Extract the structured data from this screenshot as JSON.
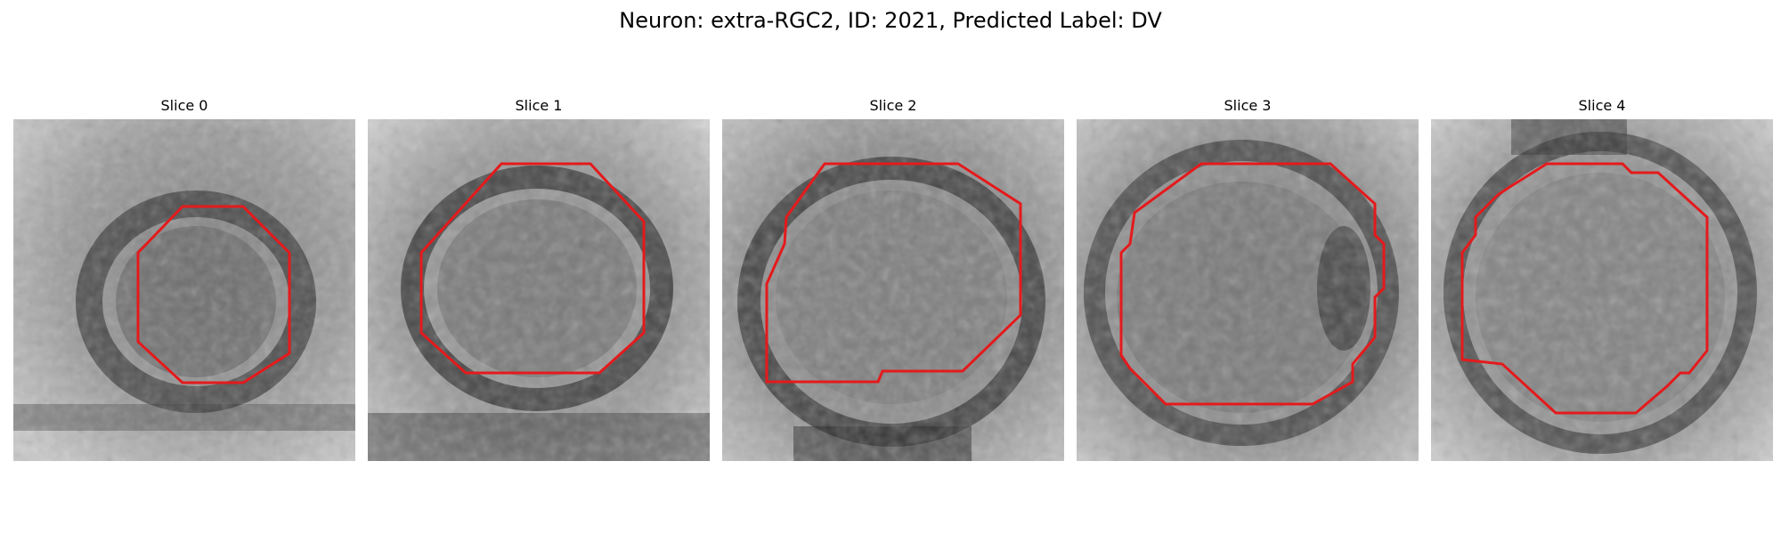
{
  "figure": {
    "title": "Neuron: extra-RGC2, ID: 2021, Predicted Label: DV"
  },
  "colors": {
    "contour": "#e41a1c",
    "colormap": "grayscale"
  },
  "panels": [
    {
      "title": "Slice 0"
    },
    {
      "title": "Slice 1"
    },
    {
      "title": "Slice 2"
    },
    {
      "title": "Slice 3"
    },
    {
      "title": "Slice 4"
    }
  ]
}
